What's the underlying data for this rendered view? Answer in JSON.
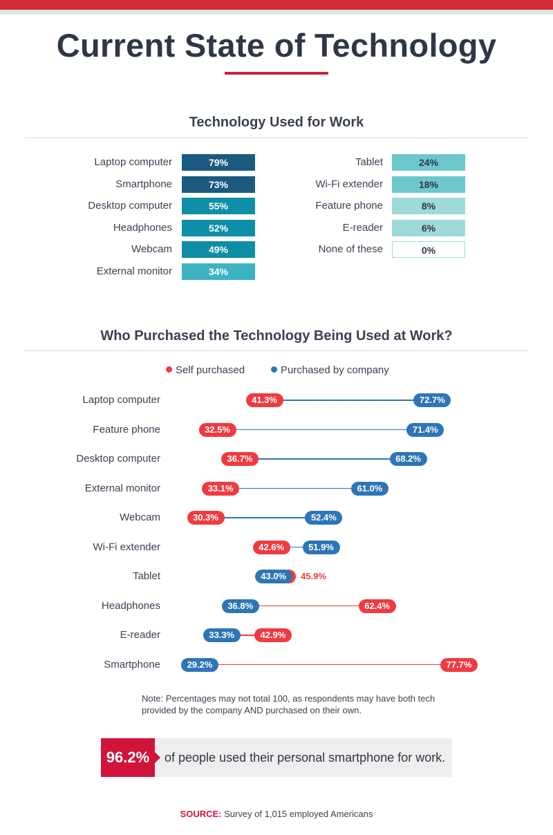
{
  "page": {
    "title": "Current State of Technology",
    "note_prefix": "Note:",
    "note_text": "Percentages may not total 100, as respondents may have both tech provided by the company AND purchased on their own.",
    "callout_value": "96.2%",
    "callout_text": "of people used their personal smartphone for work.",
    "source_label": "SOURCE:",
    "source_text": "Survey of 1,015 employed Americans"
  },
  "colors": {
    "accent_red": "#d0143c",
    "self_purchased": "#ef3b40",
    "company_purchased": "#2e75b6"
  },
  "chart_data": [
    {
      "type": "table",
      "title": "Technology Used for Work",
      "items": [
        {
          "label": "Laptop computer",
          "value": "79%",
          "fill": "#1b5a7e",
          "text": "#ffffff"
        },
        {
          "label": "Smartphone",
          "value": "73%",
          "fill": "#1b5a7e",
          "text": "#ffffff"
        },
        {
          "label": "Desktop computer",
          "value": "55%",
          "fill": "#0e8ea7",
          "text": "#ffffff"
        },
        {
          "label": "Headphones",
          "value": "52%",
          "fill": "#0e8ea7",
          "text": "#ffffff"
        },
        {
          "label": "Webcam",
          "value": "49%",
          "fill": "#0e8ea7",
          "text": "#ffffff"
        },
        {
          "label": "External monitor",
          "value": "34%",
          "fill": "#3db3c2",
          "text": "#ffffff"
        },
        {
          "label": "Tablet",
          "value": "24%",
          "fill": "#6cc7cc",
          "text": "#2f3646"
        },
        {
          "label": "Wi-Fi extender",
          "value": "18%",
          "fill": "#6cc7cc",
          "text": "#2f3646"
        },
        {
          "label": "Feature phone",
          "value": "8%",
          "fill": "#9edad9",
          "text": "#2f3646"
        },
        {
          "label": "E-reader",
          "value": "6%",
          "fill": "#9edad9",
          "text": "#2f3646"
        },
        {
          "label": "None of these",
          "value": "0%",
          "fill": "#ffffff",
          "text": "#2f3646"
        }
      ]
    },
    {
      "type": "scatter",
      "title": "Who Purchased the Technology Being Used at Work?",
      "legend": [
        "Self purchased",
        "Purchased by company"
      ],
      "legend_position": "top-center",
      "xlim": [
        25,
        80
      ],
      "categories": [
        "Laptop computer",
        "Feature phone",
        "Desktop computer",
        "External monitor",
        "Webcam",
        "Wi-Fi extender",
        "Tablet",
        "Headphones",
        "E-reader",
        "Smartphone"
      ],
      "series": [
        {
          "name": "Self purchased",
          "values": [
            41.3,
            32.5,
            36.7,
            33.1,
            30.3,
            42.6,
            45.9,
            62.4,
            42.9,
            77.7
          ]
        },
        {
          "name": "Purchased by company",
          "values": [
            72.7,
            71.4,
            68.2,
            61.0,
            52.4,
            51.9,
            43.0,
            36.8,
            33.3,
            29.2
          ]
        }
      ]
    }
  ]
}
